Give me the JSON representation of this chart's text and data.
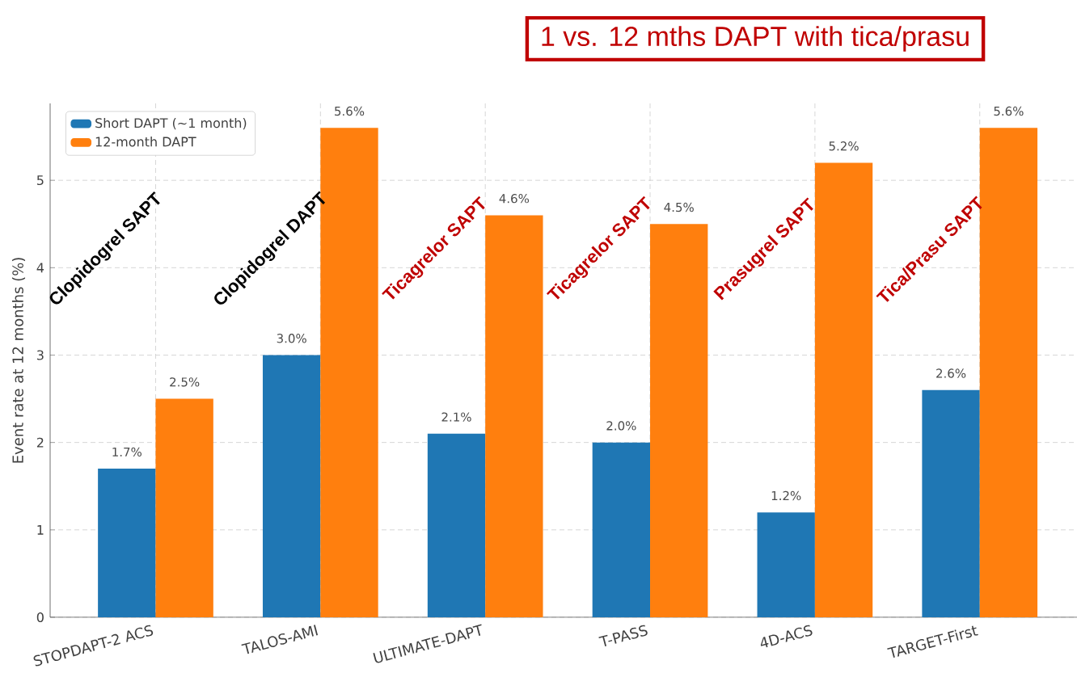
{
  "chart_data": {
    "type": "bar",
    "categories": [
      "STOPDAPT-2 ACS",
      "TALOS-AMI",
      "ULTIMATE-DAPT",
      "T-PASS",
      "4D-ACS",
      "TARGET-First"
    ],
    "series": [
      {
        "name": "Short DAPT (~1 month)",
        "color": "#1f77b4",
        "values": [
          1.7,
          3.0,
          2.1,
          2.0,
          1.2,
          2.6
        ],
        "value_labels": [
          "1.7%",
          "3.0%",
          "2.1%",
          "2.0%",
          "1.2%",
          "2.6%"
        ]
      },
      {
        "name": "12-month DAPT",
        "color": "#ff7f0e",
        "values": [
          2.5,
          5.6,
          4.6,
          4.5,
          5.2,
          5.6
        ],
        "value_labels": [
          "2.5%",
          "5.6%",
          "4.6%",
          "4.5%",
          "5.2%",
          "5.6%"
        ]
      }
    ],
    "ylabel": "Event rate at 12 months (%)",
    "ylim": [
      0,
      5.88
    ],
    "yticks": [
      0,
      1,
      2,
      3,
      4,
      5
    ],
    "grid": true,
    "legend": "top left",
    "annotations": [
      "Clopidogrel SAPT",
      "Clopidogrel DAPT",
      "Ticagrelor SAPT",
      "Ticagrelor SAPT",
      "Prasugrel SAPT",
      "Tica/Prasu SAPT",
      "1 vs. 12 mths DAPT with tica/prasu"
    ]
  }
}
